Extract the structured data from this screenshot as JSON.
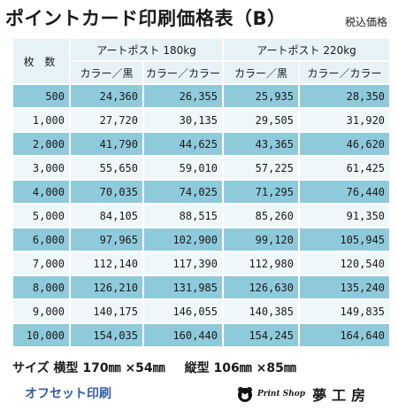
{
  "title": "ポイントカード印刷価格表（B）",
  "tax_note": "税込価格",
  "table": {
    "qty_header": "枚 数",
    "groups": [
      "アートポスト 180kg",
      "アートポスト 220kg"
    ],
    "subheaders": [
      "カラー／黒",
      "カラー／カラー",
      "カラー／黒",
      "カラー／カラー"
    ],
    "rows": [
      [
        "500",
        "24,360",
        "26,355",
        "25,935",
        "28,350"
      ],
      [
        "1,000",
        "27,720",
        "30,135",
        "29,505",
        "31,920"
      ],
      [
        "2,000",
        "41,790",
        "44,625",
        "43,365",
        "46,620"
      ],
      [
        "3,000",
        "55,650",
        "59,010",
        "57,225",
        "61,425"
      ],
      [
        "4,000",
        "70,035",
        "74,025",
        "71,295",
        "76,440"
      ],
      [
        "5,000",
        "84,105",
        "88,515",
        "85,260",
        "91,350"
      ],
      [
        "6,000",
        "97,965",
        "102,900",
        "99,120",
        "105,945"
      ],
      [
        "7,000",
        "112,140",
        "117,390",
        "112,980",
        "120,540"
      ],
      [
        "8,000",
        "126,210",
        "131,985",
        "126,630",
        "135,240"
      ],
      [
        "9,000",
        "140,175",
        "146,055",
        "140,385",
        "149,835"
      ],
      [
        "10,000",
        "154,035",
        "160,440",
        "154,245",
        "164,640"
      ]
    ]
  },
  "footer": {
    "size_label": "サイズ",
    "landscape": "横型 170㎜ ×54㎜",
    "portrait": "縦型 106㎜ ×85㎜",
    "print_method": "オフセット印刷",
    "logo_script": "Print Shop",
    "logo_brand": "夢工房"
  },
  "colors": {
    "band": "#8fcadb",
    "plain": "#f0f7fa",
    "header": "#e6f2f6",
    "offset_text": "#2f5ca7"
  }
}
